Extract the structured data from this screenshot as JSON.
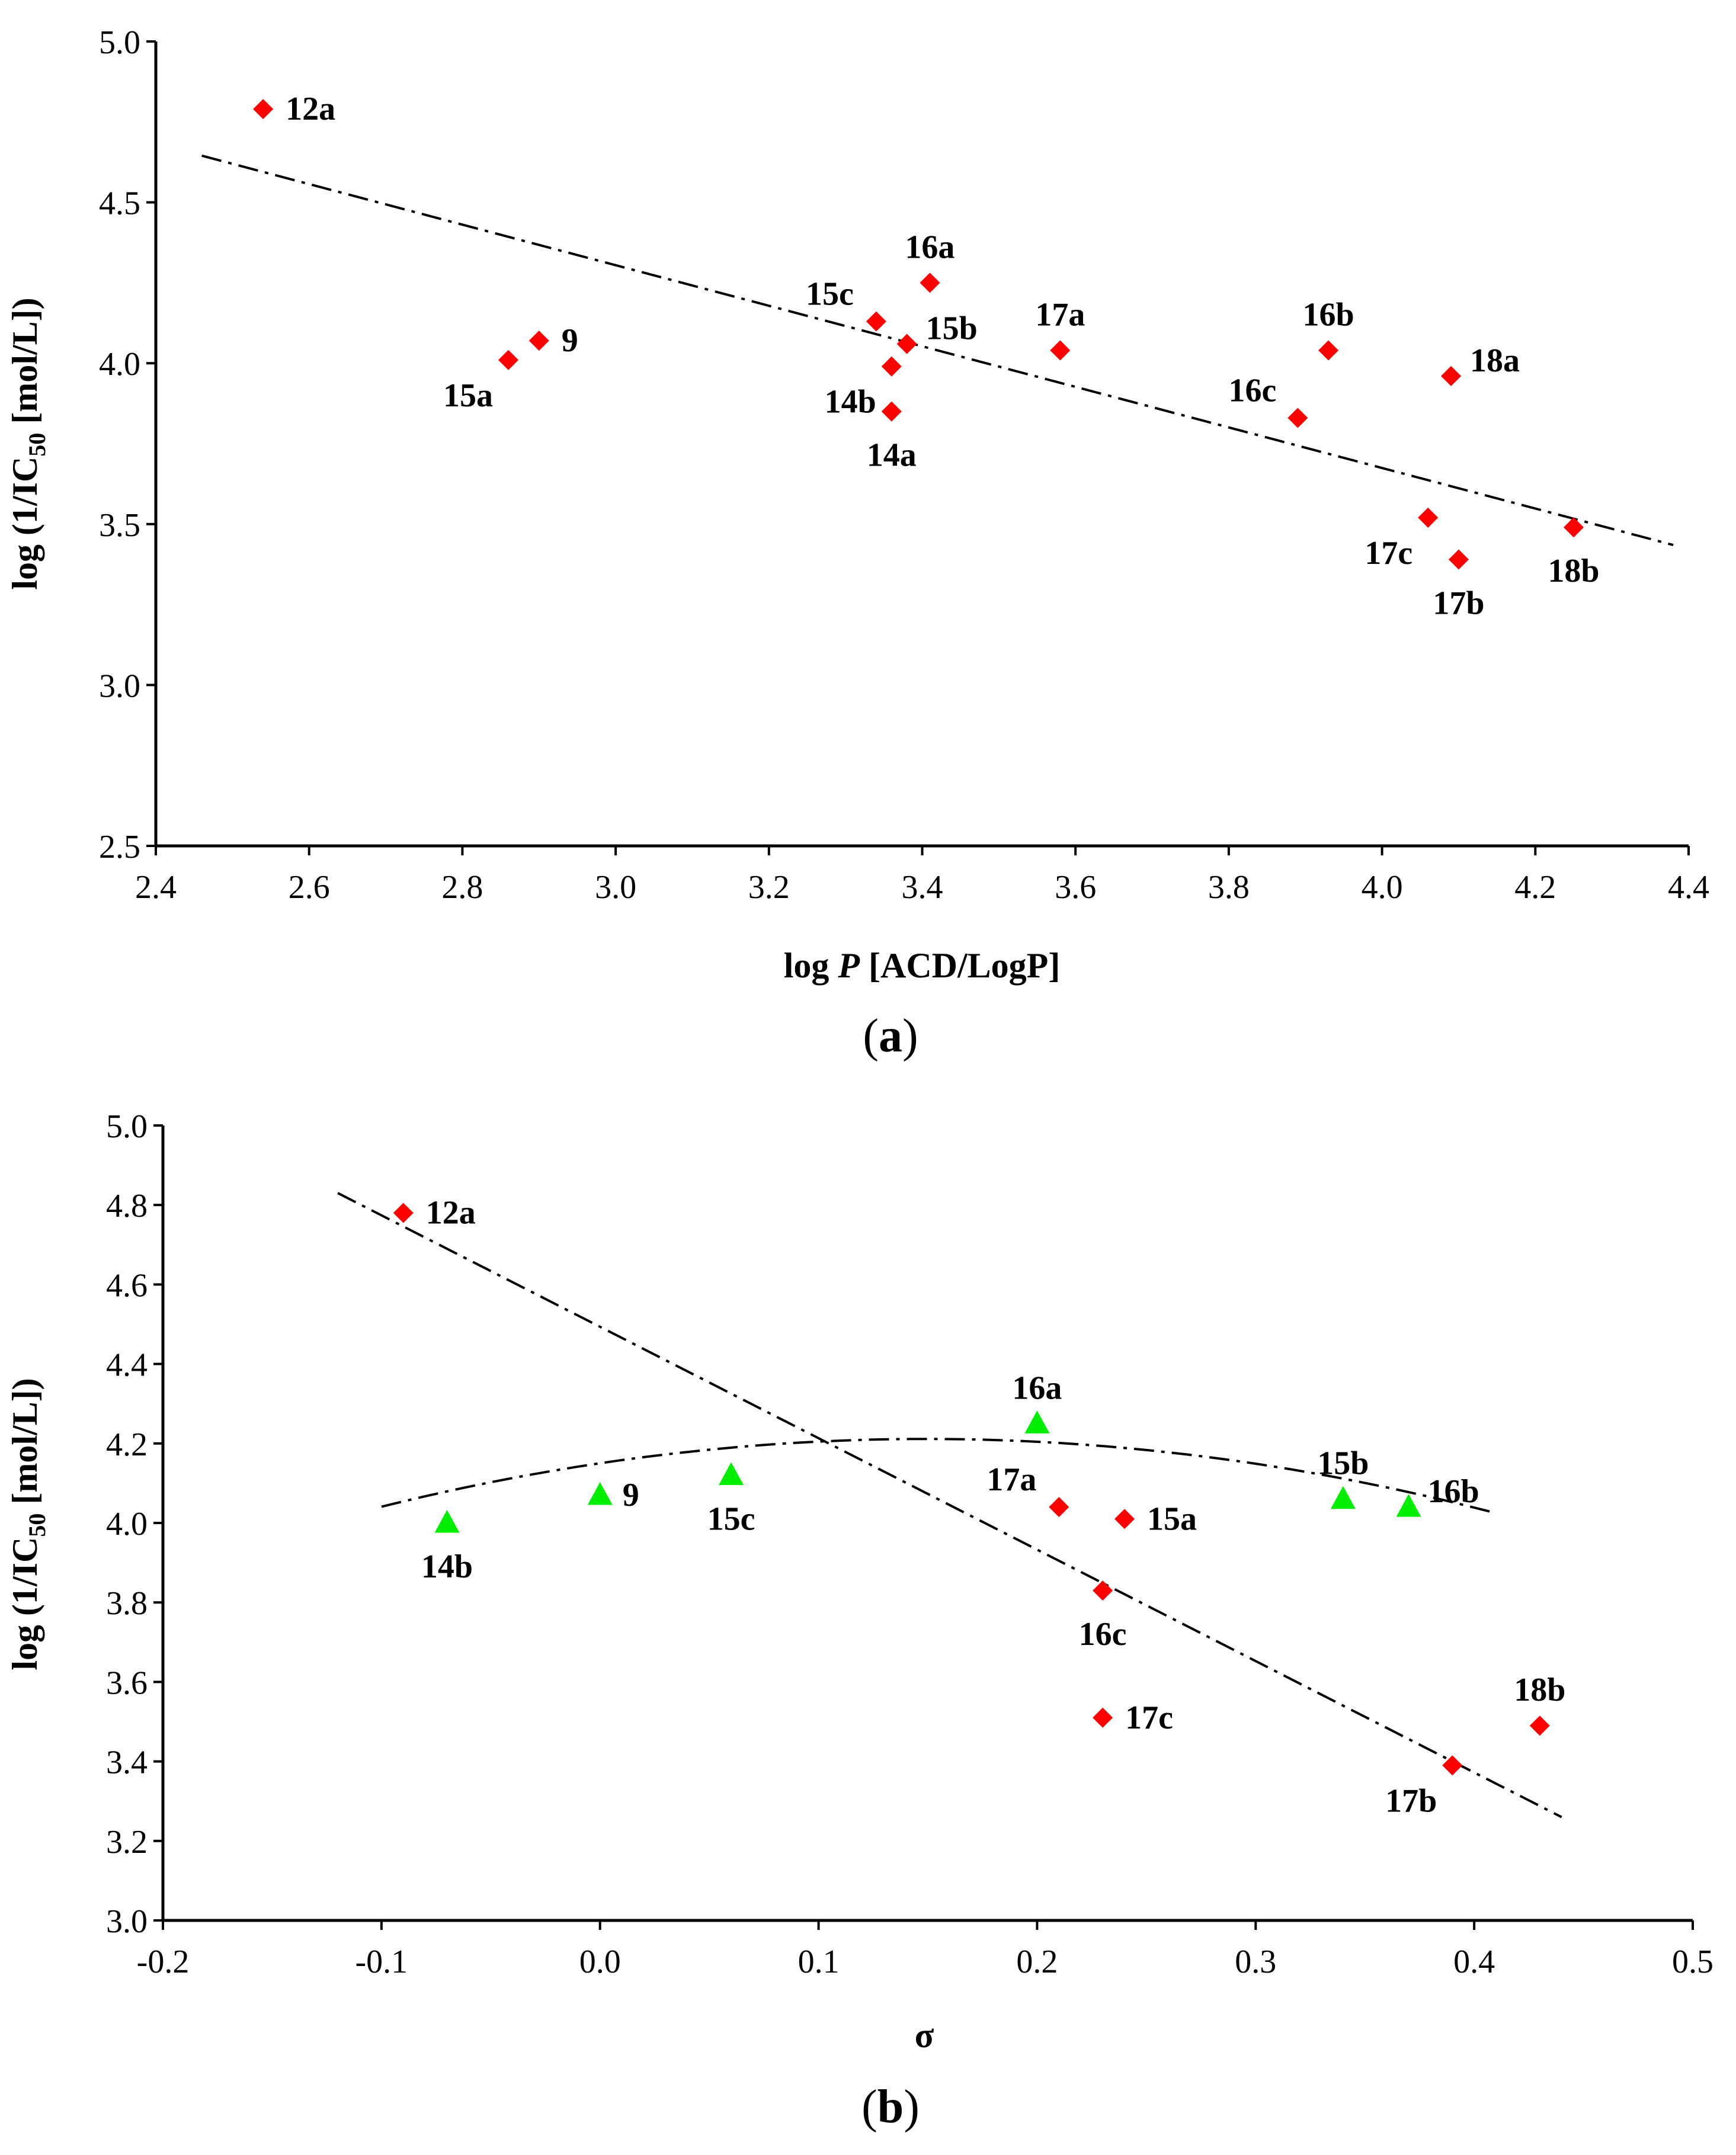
{
  "chart_data": [
    {
      "type": "scatter",
      "panel_label": "(a)",
      "panel_letter": "a",
      "xlabel_prefix": "log ",
      "xlabel_var": "P",
      "xlabel_suffix": "  [ACD/LogP]",
      "ylabel": "log (1/IC50 [mol/L])",
      "ylabel_pre": "log (1/IC",
      "ylabel_sub": "50",
      "ylabel_post": " [mol/L])",
      "xlim": [
        2.4,
        4.4
      ],
      "ylim": [
        2.5,
        5.0
      ],
      "x_ticks": [
        "2.4",
        "2.6",
        "2.8",
        "3.0",
        "3.2",
        "3.4",
        "3.6",
        "3.8",
        "4.0",
        "4.2",
        "4.4"
      ],
      "y_ticks": [
        "2.5",
        "3.0",
        "3.5",
        "4.0",
        "4.5",
        "5.0"
      ],
      "series": [
        {
          "name": "compounds",
          "marker": "diamond",
          "color": "#ff0000",
          "points": [
            {
              "label": "12a",
              "x": 2.54,
              "y": 4.79,
              "pos": "right"
            },
            {
              "label": "15a",
              "x": 2.86,
              "y": 4.01,
              "pos": "below-left"
            },
            {
              "label": "9",
              "x": 2.9,
              "y": 4.07,
              "pos": "right"
            },
            {
              "label": "15c",
              "x": 3.34,
              "y": 4.13,
              "pos": "above-left"
            },
            {
              "label": "14b",
              "x": 3.36,
              "y": 3.99,
              "pos": "below-left"
            },
            {
              "label": "14a",
              "x": 3.36,
              "y": 3.85,
              "pos": "below"
            },
            {
              "label": "15b",
              "x": 3.38,
              "y": 4.06,
              "pos": "upper-right"
            },
            {
              "label": "16a",
              "x": 3.41,
              "y": 4.25,
              "pos": "above"
            },
            {
              "label": "17a",
              "x": 3.58,
              "y": 4.04,
              "pos": "above"
            },
            {
              "label": "16c",
              "x": 3.89,
              "y": 3.83,
              "pos": "upper-left"
            },
            {
              "label": "16b",
              "x": 3.93,
              "y": 4.04,
              "pos": "above"
            },
            {
              "label": "17c",
              "x": 4.06,
              "y": 3.52,
              "pos": "below-left"
            },
            {
              "label": "18a",
              "x": 4.09,
              "y": 3.96,
              "pos": "upper-right"
            },
            {
              "label": "17b",
              "x": 4.1,
              "y": 3.39,
              "pos": "below"
            },
            {
              "label": "18b",
              "x": 4.25,
              "y": 3.49,
              "pos": "below"
            }
          ]
        }
      ],
      "trendlines": [
        {
          "kind": "linear",
          "style": "dash-dot",
          "color": "#000000",
          "x": [
            2.46,
            4.38
          ],
          "y": [
            4.645,
            3.435
          ]
        }
      ]
    },
    {
      "type": "scatter",
      "panel_label": "(b)",
      "panel_letter": "b",
      "xlabel": "σ",
      "ylabel": "log (1/IC50 [mol/L])",
      "ylabel_pre": "log (1/IC",
      "ylabel_sub": "50",
      "ylabel_post": " [mol/L])",
      "xlim": [
        -0.2,
        0.5
      ],
      "ylim": [
        3.0,
        5.0
      ],
      "x_ticks": [
        "-0.2",
        "-0.1",
        "0.0",
        "0.1",
        "0.2",
        "0.3",
        "0.4",
        "0.5"
      ],
      "y_ticks": [
        "3.0",
        "3.2",
        "3.4",
        "3.6",
        "3.8",
        "4.0",
        "4.2",
        "4.4",
        "4.6",
        "4.8",
        "5.0"
      ],
      "series": [
        {
          "name": "diamonds",
          "marker": "diamond",
          "color": "#ff0000",
          "points": [
            {
              "label": "12a",
              "x": -0.09,
              "y": 4.78,
              "pos": "right"
            },
            {
              "label": "17a",
              "x": 0.21,
              "y": 4.04,
              "pos": "above-left"
            },
            {
              "label": "15a",
              "x": 0.24,
              "y": 4.01,
              "pos": "right"
            },
            {
              "label": "16c",
              "x": 0.23,
              "y": 3.83,
              "pos": "below"
            },
            {
              "label": "17c",
              "x": 0.23,
              "y": 3.51,
              "pos": "right"
            },
            {
              "label": "17b",
              "x": 0.39,
              "y": 3.39,
              "pos": "below-left"
            },
            {
              "label": "18b",
              "x": 0.43,
              "y": 3.49,
              "pos": "above"
            }
          ]
        },
        {
          "name": "triangles",
          "marker": "triangle",
          "color": "#00ee00",
          "points": [
            {
              "label": "14b",
              "x": -0.07,
              "y": 4.0,
              "pos": "below"
            },
            {
              "label": "9",
              "x": 0.0,
              "y": 4.07,
              "pos": "right"
            },
            {
              "label": "15c",
              "x": 0.06,
              "y": 4.12,
              "pos": "below"
            },
            {
              "label": "16a",
              "x": 0.2,
              "y": 4.25,
              "pos": "above"
            },
            {
              "label": "15b",
              "x": 0.34,
              "y": 4.06,
              "pos": "above"
            },
            {
              "label": "16b",
              "x": 0.37,
              "y": 4.04,
              "pos": "upper-right"
            }
          ]
        }
      ],
      "trendlines": [
        {
          "kind": "linear",
          "style": "dash-dot",
          "color": "#000000",
          "x": [
            -0.12,
            0.44
          ],
          "y": [
            4.83,
            3.26
          ]
        },
        {
          "kind": "quadratic",
          "style": "dash-dot",
          "color": "#000000",
          "x_range": [
            -0.1,
            0.41
          ],
          "coeffs": [
            4.1502,
            0.8194,
            -2.745
          ]
        }
      ]
    }
  ]
}
